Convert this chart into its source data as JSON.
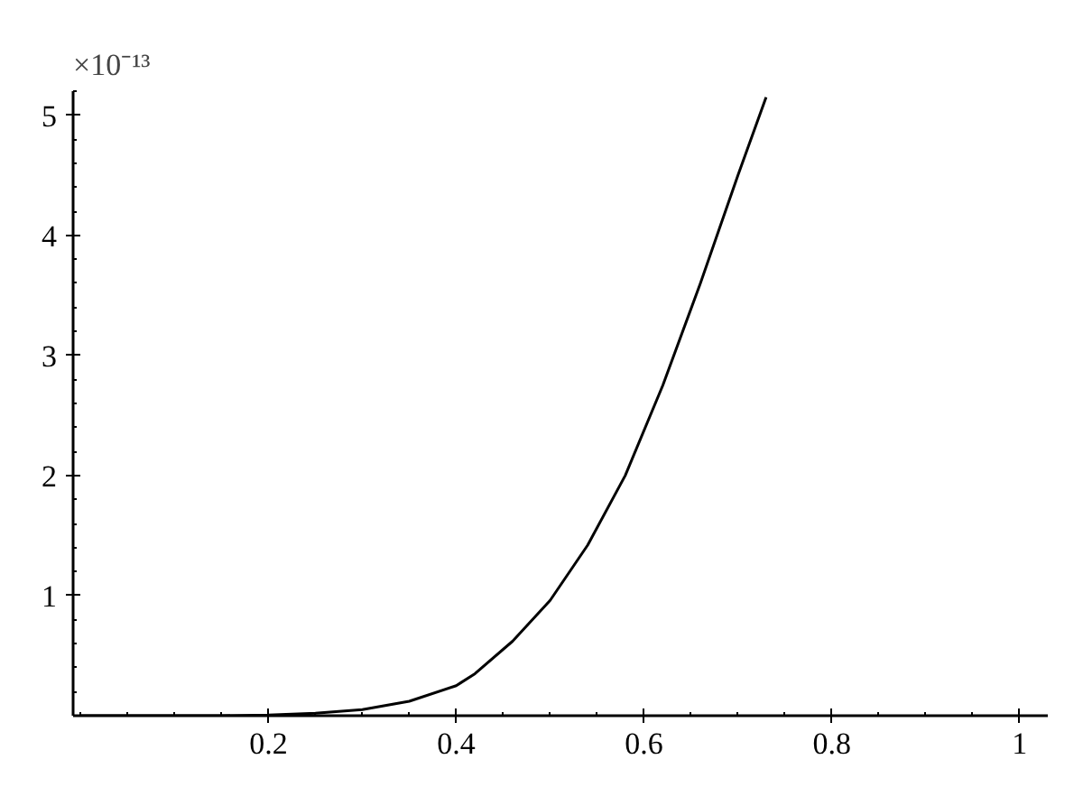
{
  "chart_data": {
    "type": "line",
    "x": [
      0,
      0.05,
      0.1,
      0.15,
      0.2,
      0.25,
      0.3,
      0.35,
      0.4,
      0.42,
      0.46,
      0.5,
      0.54,
      0.58,
      0.62,
      0.66,
      0.7,
      0.73
    ],
    "series": [
      {
        "color": "#000000",
        "values": [
          0,
          0,
          0,
          0,
          0.005,
          0.02,
          0.05,
          0.12,
          0.25,
          0.35,
          0.62,
          0.96,
          1.42,
          2.0,
          2.75,
          3.6,
          4.5,
          5.15
        ]
      }
    ],
    "xlim": [
      -0.008,
      1.03
    ],
    "ylim": [
      0,
      5.2
    ],
    "xticks": [
      0.2,
      0.4,
      0.6,
      0.8,
      1
    ],
    "yticks": [
      1,
      2,
      3,
      4,
      5
    ],
    "annotations": [
      "×10⁻¹³"
    ],
    "grid": false,
    "marker": "none",
    "line_style": "solid"
  }
}
